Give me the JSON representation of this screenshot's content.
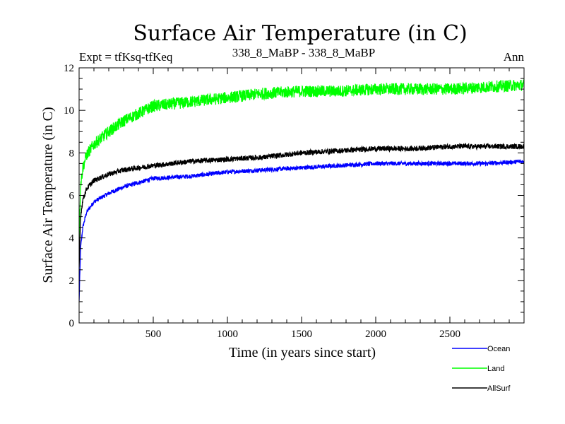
{
  "chart_data": {
    "type": "line",
    "title": "Surface Air Temperature (in C)",
    "subtitle_left": "Expt = tfKsq-tfKeq",
    "subtitle_center": "338_8_MaBP - 338_8_MaBP",
    "subtitle_right": "Ann",
    "xlabel": "Time (in years since start)",
    "ylabel": "Surface Air Temperature (in C)",
    "xlim": [
      0,
      3000
    ],
    "ylim": [
      0,
      12
    ],
    "x_ticks": [
      500,
      1000,
      1500,
      2000,
      2500
    ],
    "y_ticks": [
      0,
      2,
      4,
      6,
      8,
      10,
      12
    ],
    "legend_position": "bottom-right",
    "series": [
      {
        "name": "Ocean",
        "color": "#0000ff",
        "x": [
          0,
          10,
          25,
          50,
          100,
          200,
          300,
          500,
          750,
          1000,
          1250,
          1500,
          1750,
          2000,
          2250,
          2500,
          2750,
          3000
        ],
        "y": [
          1.0,
          3.5,
          4.5,
          5.2,
          5.7,
          6.1,
          6.4,
          6.8,
          6.9,
          7.1,
          7.2,
          7.3,
          7.4,
          7.5,
          7.5,
          7.5,
          7.5,
          7.6
        ]
      },
      {
        "name": "Land",
        "color": "#00ff00",
        "x": [
          0,
          10,
          25,
          50,
          100,
          200,
          300,
          500,
          750,
          1000,
          1250,
          1500,
          1750,
          2000,
          2250,
          2500,
          2750,
          3000
        ],
        "y": [
          4.0,
          6.5,
          7.3,
          7.9,
          8.4,
          9.0,
          9.5,
          10.2,
          10.4,
          10.6,
          10.8,
          10.9,
          10.9,
          11.0,
          11.0,
          11.0,
          11.1,
          11.2
        ]
      },
      {
        "name": "AllSurf",
        "color": "#000000",
        "x": [
          0,
          10,
          25,
          50,
          100,
          200,
          300,
          500,
          750,
          1000,
          1250,
          1500,
          1750,
          2000,
          2250,
          2500,
          2750,
          3000
        ],
        "y": [
          2.5,
          5.0,
          5.8,
          6.3,
          6.7,
          7.0,
          7.2,
          7.4,
          7.6,
          7.7,
          7.8,
          8.0,
          8.1,
          8.2,
          8.2,
          8.3,
          8.3,
          8.3
        ]
      }
    ]
  }
}
